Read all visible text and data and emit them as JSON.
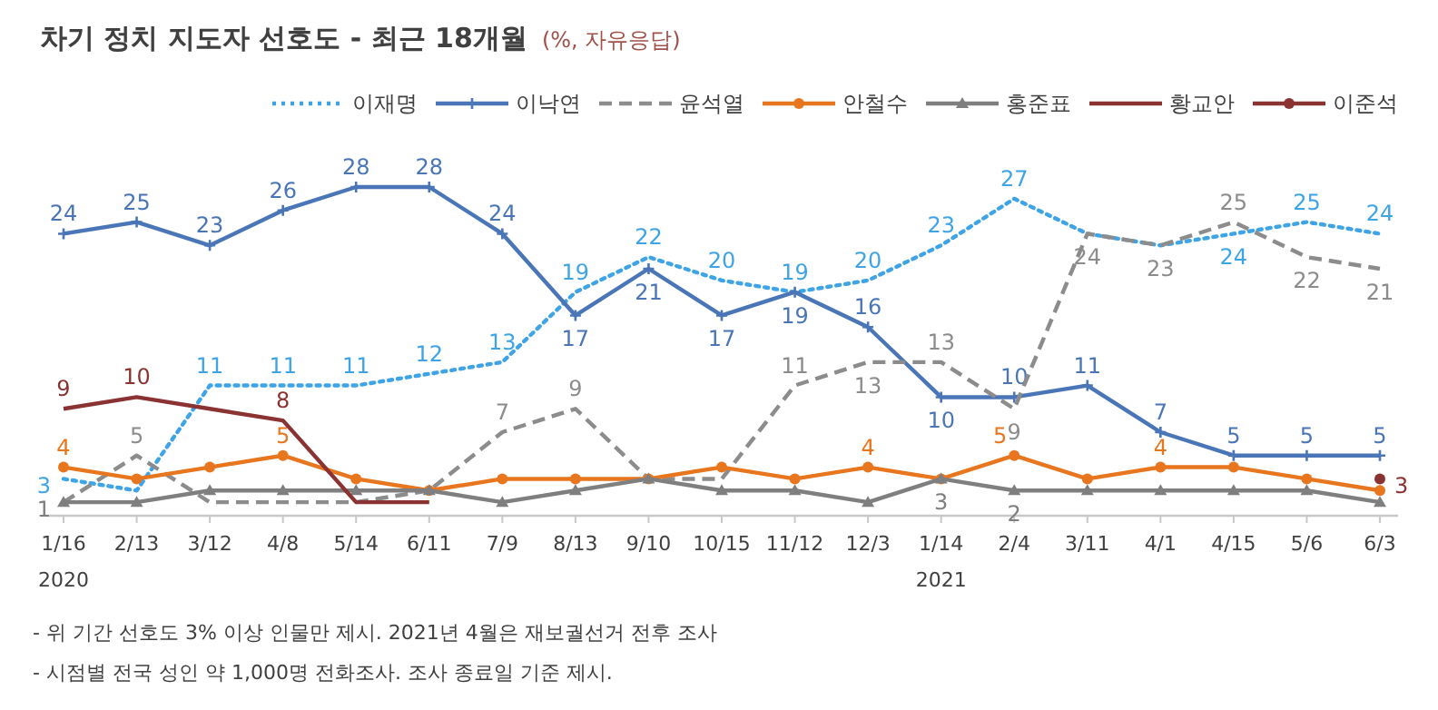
{
  "chart_data": {
    "type": "line",
    "title": "차기 정치 지도자 선호도 - 최근 18개월",
    "subtitle": "(%, 자유응답)",
    "categories": [
      "1/16",
      "2/13",
      "3/12",
      "4/8",
      "5/14",
      "6/11",
      "7/9",
      "8/13",
      "9/10",
      "10/15",
      "11/12",
      "12/3",
      "1/14",
      "2/4",
      "3/11",
      "4/1",
      "4/15",
      "5/6",
      "6/3"
    ],
    "tick_labels": "x",
    "grid": false,
    "legend": "top right",
    "series": [
      {
        "name": "이재명",
        "color": "#3fa4e6",
        "line_style": "dotted",
        "marker": "none",
        "values": [
          3,
          2,
          11,
          11,
          11,
          12,
          13,
          19,
          22,
          20,
          19,
          20,
          23,
          27,
          24,
          23,
          24,
          25,
          24
        ],
        "value_labels": [
          "3",
          null,
          "11",
          "11",
          "11",
          "12",
          "13",
          "19",
          "22",
          "20",
          "19",
          "20",
          "23",
          "27",
          null,
          null,
          "24",
          "25",
          "24"
        ]
      },
      {
        "name": "이낙연",
        "color": "#4a76b8",
        "line_style": "solid",
        "marker": "cross",
        "values": [
          24,
          25,
          23,
          26,
          28,
          28,
          24,
          17,
          21,
          17,
          19,
          16,
          10,
          10,
          11,
          7,
          5,
          5,
          5
        ],
        "value_labels": [
          "24",
          "25",
          "23",
          "26",
          "28",
          "28",
          "24",
          "17",
          "21",
          "17",
          "19",
          "16",
          "10",
          "10",
          "11",
          "7",
          "5",
          "5",
          "5"
        ]
      },
      {
        "name": "윤석열",
        "color": "#8c8c8c",
        "line_style": "dashed",
        "marker": "none",
        "values": [
          1,
          5,
          1,
          1,
          1,
          2,
          7,
          9,
          3,
          3,
          11,
          13,
          13,
          9,
          24,
          23,
          25,
          22,
          21
        ],
        "value_labels": [
          null,
          "5",
          null,
          null,
          null,
          null,
          "7",
          "9",
          null,
          null,
          "11",
          "13",
          "13",
          "9",
          "24",
          "23",
          "25",
          "22",
          "21"
        ]
      },
      {
        "name": "안철수",
        "color": "#e8761f",
        "line_style": "solid",
        "marker": "circle",
        "values": [
          4,
          3,
          4,
          5,
          3,
          2,
          3,
          3,
          3,
          4,
          3,
          4,
          3,
          5,
          3,
          4,
          4,
          3,
          2
        ],
        "value_labels": [
          "4",
          null,
          null,
          "5",
          null,
          null,
          null,
          null,
          null,
          null,
          null,
          "4",
          null,
          "5",
          null,
          "4",
          null,
          null,
          null
        ]
      },
      {
        "name": "홍준표",
        "color": "#7f7f7f",
        "line_style": "solid",
        "marker": "triangle",
        "values": [
          1,
          1,
          2,
          2,
          2,
          2,
          1,
          2,
          3,
          2,
          2,
          1,
          3,
          2,
          2,
          2,
          2,
          2,
          1
        ],
        "value_labels": [
          "1",
          null,
          null,
          null,
          null,
          null,
          null,
          null,
          null,
          null,
          null,
          null,
          "3",
          "2",
          null,
          null,
          null,
          null,
          null
        ]
      },
      {
        "name": "황교안",
        "color": "#8b3232",
        "line_style": "solid",
        "marker": "none",
        "values": [
          9,
          10,
          9,
          8,
          1,
          1,
          null,
          null,
          null,
          null,
          null,
          null,
          null,
          null,
          null,
          null,
          null,
          null,
          null
        ],
        "value_labels": [
          "9",
          "10",
          null,
          "8",
          null,
          null,
          null,
          null,
          null,
          null,
          null,
          null,
          null,
          null,
          null,
          null,
          null,
          null,
          null
        ]
      },
      {
        "name": "이준석",
        "color": "#8b3232",
        "line_style": "solid",
        "marker": "circle",
        "values": [
          null,
          null,
          null,
          null,
          null,
          null,
          null,
          null,
          null,
          null,
          null,
          null,
          null,
          null,
          null,
          null,
          null,
          null,
          3
        ],
        "value_labels": [
          null,
          null,
          null,
          null,
          null,
          null,
          null,
          null,
          null,
          null,
          null,
          null,
          null,
          null,
          null,
          null,
          null,
          null,
          "3"
        ]
      }
    ],
    "annotations": [
      "2020",
      "2021",
      "- 위 기간 선호도 3% 이상 인물만 제시. 2021년 4월은 재보궐선거 전후 조사",
      "- 시점별 전국 성인 약 1,000명 전화조사. 조사 종료일 기준 제시."
    ]
  }
}
